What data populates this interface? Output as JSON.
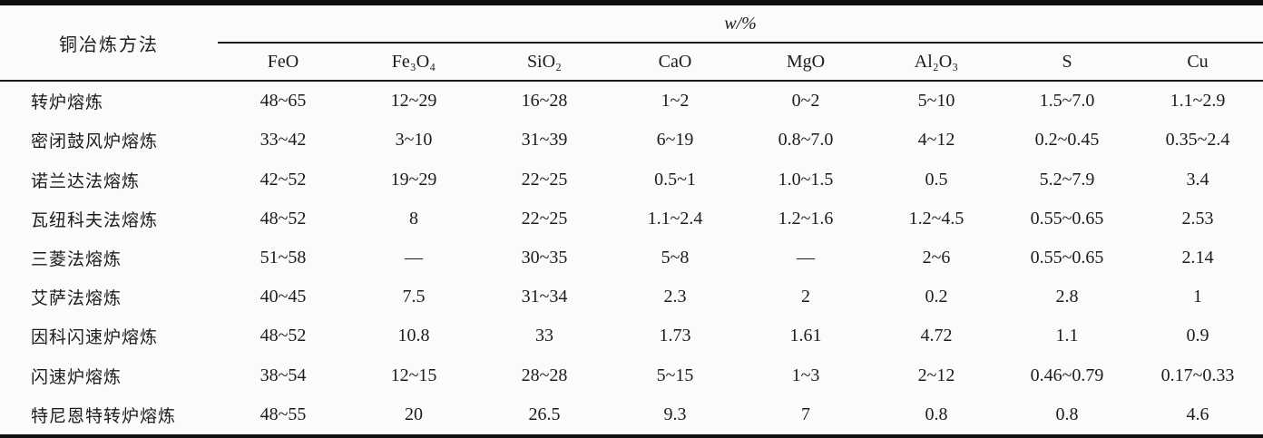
{
  "table": {
    "method_header": "铜冶炼方法",
    "group_header": "w/%",
    "columns": [
      "FeO",
      "Fe₃O₄",
      "SiO₂",
      "CaO",
      "MgO",
      "Al₂O₃",
      "S",
      "Cu"
    ],
    "rows": [
      {
        "method": "转炉熔炼",
        "values": [
          "48~65",
          "12~29",
          "16~28",
          "1~2",
          "0~2",
          "5~10",
          "1.5~7.0",
          "1.1~2.9"
        ]
      },
      {
        "method": "密闭鼓风炉熔炼",
        "values": [
          "33~42",
          "3~10",
          "31~39",
          "6~19",
          "0.8~7.0",
          "4~12",
          "0.2~0.45",
          "0.35~2.4"
        ]
      },
      {
        "method": "诺兰达法熔炼",
        "values": [
          "42~52",
          "19~29",
          "22~25",
          "0.5~1",
          "1.0~1.5",
          "0.5",
          "5.2~7.9",
          "3.4"
        ]
      },
      {
        "method": "瓦纽科夫法熔炼",
        "values": [
          "48~52",
          "8",
          "22~25",
          "1.1~2.4",
          "1.2~1.6",
          "1.2~4.5",
          "0.55~0.65",
          "2.53"
        ]
      },
      {
        "method": "三菱法熔炼",
        "values": [
          "51~58",
          "—",
          "30~35",
          "5~8",
          "—",
          "2~6",
          "0.55~0.65",
          "2.14"
        ]
      },
      {
        "method": "艾萨法熔炼",
        "values": [
          "40~45",
          "7.5",
          "31~34",
          "2.3",
          "2",
          "0.2",
          "2.8",
          "1"
        ]
      },
      {
        "method": "因科闪速炉熔炼",
        "values": [
          "48~52",
          "10.8",
          "33",
          "1.73",
          "1.61",
          "4.72",
          "1.1",
          "0.9"
        ]
      },
      {
        "method": "闪速炉熔炼",
        "values": [
          "38~54",
          "12~15",
          "28~28",
          "5~15",
          "1~3",
          "2~12",
          "0.46~0.79",
          "0.17~0.33"
        ]
      },
      {
        "method": "特尼恩特转炉熔炼",
        "values": [
          "48~55",
          "20",
          "26.5",
          "9.3",
          "7",
          "0.8",
          "0.8",
          "4.6"
        ]
      }
    ]
  },
  "colors": {
    "background": "#fbfbfa",
    "text": "#1c1c1c",
    "rule": "#101010"
  }
}
